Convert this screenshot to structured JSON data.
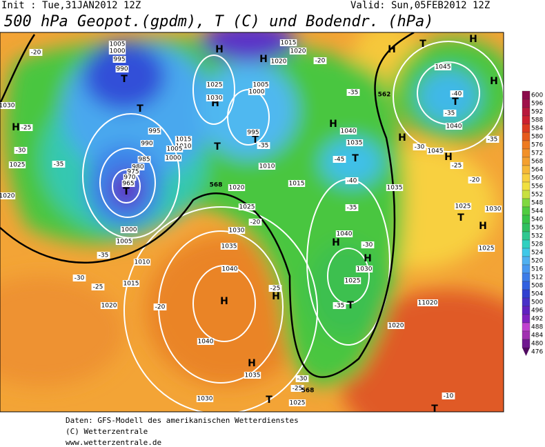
{
  "header": {
    "init": "Init : Tue,31JAN2012 12Z",
    "valid": "Valid: Sun,05FEB2012 12Z",
    "title": "500 hPa Geopot.(gpdm), T (C) und Bodendr. (hPa)"
  },
  "legend": {
    "values": [
      600,
      596,
      592,
      588,
      584,
      580,
      576,
      572,
      568,
      564,
      560,
      556,
      552,
      548,
      544,
      540,
      536,
      532,
      528,
      524,
      520,
      516,
      512,
      508,
      504,
      500,
      496,
      492,
      488,
      484,
      480,
      476
    ],
    "colors": [
      "#8a0a4a",
      "#a0104a",
      "#b8183c",
      "#cc2030",
      "#dc3a20",
      "#e65a1c",
      "#ee7a20",
      "#f29028",
      "#f4a030",
      "#f6b838",
      "#f8d040",
      "#f0e040",
      "#c8e040",
      "#80d840",
      "#50cc40",
      "#38c448",
      "#30c060",
      "#30c890",
      "#30d0c0",
      "#40c8e8",
      "#50b0f0",
      "#4898f0",
      "#3c7ce8",
      "#3060e0",
      "#3040d0",
      "#4830c8",
      "#6020c0",
      "#8020c0",
      "#c040d0",
      "#a030b0",
      "#701890",
      "#500a60"
    ]
  },
  "map": {
    "pressure_centers": [
      "H",
      "H",
      "H",
      "H",
      "H",
      "H",
      "H",
      "H",
      "H",
      "H",
      "H",
      "H",
      "H",
      "H",
      "H",
      "H",
      "T",
      "T",
      "T",
      "T",
      "T",
      "T",
      "T",
      "T",
      "T",
      "T",
      "T",
      "T"
    ],
    "isobar_labels": [
      "1005",
      "1000",
      "995",
      "990",
      "1020",
      "1025",
      "1030",
      "1000",
      "995",
      "995",
      "990",
      "985",
      "980",
      "975",
      "970",
      "965",
      "1015",
      "1010",
      "1005",
      "1000",
      "1010",
      "1015",
      "1020",
      "1025",
      "1030",
      "1035",
      "1040",
      "1040",
      "1035",
      "1030",
      "1025",
      "1020",
      "1025",
      "1030",
      "1035",
      "1040",
      "1035",
      "1045",
      "1040",
      "1045",
      "1040",
      "1025",
      "1030",
      "1025",
      "11020",
      "1020",
      "1015",
      "1010",
      "1005",
      "1000",
      "1025",
      "1030",
      "1020",
      "1015",
      "1020",
      "1005"
    ],
    "temperature_labels": [
      "-20",
      "-25",
      "-30",
      "-35",
      "-35",
      "-30",
      "-25",
      "-20",
      "-20",
      "-25",
      "-35",
      "-45",
      "-40",
      "-35",
      "-30",
      "-35",
      "-30",
      "-25",
      "-20",
      "-35",
      "-40",
      "-35",
      "-35",
      "-30",
      "-25",
      "-20",
      "-10"
    ],
    "contour_labels": [
      "562",
      "568",
      "568"
    ]
  },
  "footer": {
    "source": "Daten: GFS-Modell des amerikanischen Wetterdienstes",
    "copyright": "(C) Wetterzentrale",
    "url": "www.wetterzentrale.de"
  }
}
